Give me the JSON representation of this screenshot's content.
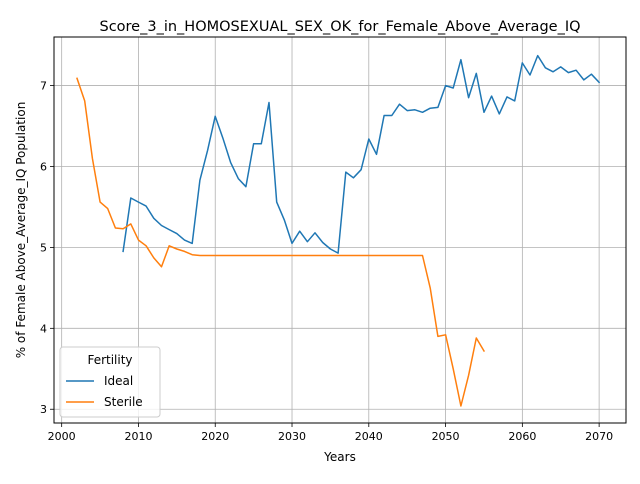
{
  "chart_data": {
    "type": "line",
    "title": "Score_3_in_HOMOSEXUAL_SEX_OK_for_Female_Above_Average_IQ",
    "xlabel": "Years",
    "ylabel": "% of Female Above_Average_IQ Population",
    "xlim": [
      1999,
      2073.5
    ],
    "ylim": [
      2.83,
      7.6
    ],
    "xticks": [
      2000,
      2010,
      2020,
      2030,
      2040,
      2050,
      2060,
      2070
    ],
    "yticks": [
      3,
      4,
      5,
      6,
      7
    ],
    "grid": true,
    "legend": {
      "title": "Fertility",
      "placement": "lower-left"
    },
    "series": [
      {
        "name": "Ideal",
        "color": "#1f77b4",
        "x": [
          2008,
          2009,
          2010,
          2011,
          2012,
          2013,
          2014,
          2015,
          2016,
          2017,
          2018,
          2019,
          2020,
          2021,
          2022,
          2023,
          2024,
          2025,
          2026,
          2027,
          2028,
          2029,
          2030,
          2031,
          2032,
          2033,
          2034,
          2035,
          2036,
          2037,
          2038,
          2039,
          2040,
          2041,
          2042,
          2043,
          2044,
          2045,
          2046,
          2047,
          2048,
          2049,
          2050,
          2051,
          2052,
          2053,
          2054,
          2055,
          2056,
          2057,
          2058,
          2059,
          2060,
          2061,
          2062,
          2063,
          2064,
          2065,
          2066,
          2067,
          2068,
          2069,
          2070
        ],
        "y": [
          4.95,
          5.61,
          5.56,
          5.51,
          5.36,
          5.27,
          5.22,
          5.17,
          5.09,
          5.05,
          5.83,
          6.2,
          6.62,
          6.35,
          6.05,
          5.85,
          5.75,
          6.28,
          6.28,
          6.79,
          5.56,
          5.34,
          5.05,
          5.2,
          5.07,
          5.18,
          5.06,
          4.98,
          4.93,
          5.93,
          5.86,
          5.96,
          6.34,
          6.15,
          6.63,
          6.63,
          6.77,
          6.69,
          6.7,
          6.67,
          6.72,
          6.73,
          7.0,
          6.97,
          7.32,
          6.85,
          7.15,
          6.67,
          6.87,
          6.65,
          6.86,
          6.81,
          7.28,
          7.13,
          7.37,
          7.22,
          7.17,
          7.23,
          7.16,
          7.19,
          7.07,
          7.14,
          7.04
        ]
      },
      {
        "name": "Sterile",
        "color": "#ff7f0e",
        "x": [
          2002,
          2003,
          2004,
          2005,
          2006,
          2007,
          2008,
          2009,
          2010,
          2011,
          2012,
          2013,
          2014,
          2015,
          2016,
          2017,
          2018,
          2019,
          2020,
          2021,
          2022,
          2023,
          2024,
          2025,
          2026,
          2027,
          2028,
          2029,
          2030,
          2031,
          2032,
          2033,
          2034,
          2035,
          2036,
          2037,
          2038,
          2039,
          2040,
          2041,
          2042,
          2043,
          2044,
          2045,
          2046,
          2047,
          2048,
          2049,
          2050,
          2051,
          2052,
          2053,
          2054,
          2055
        ],
        "y": [
          7.09,
          6.81,
          6.1,
          5.56,
          5.48,
          5.24,
          5.23,
          5.29,
          5.09,
          5.02,
          4.87,
          4.76,
          5.02,
          4.98,
          4.95,
          4.91,
          4.9,
          4.9,
          4.9,
          4.9,
          4.9,
          4.9,
          4.9,
          4.9,
          4.9,
          4.9,
          4.9,
          4.9,
          4.9,
          4.9,
          4.9,
          4.9,
          4.9,
          4.9,
          4.9,
          4.9,
          4.9,
          4.9,
          4.9,
          4.9,
          4.9,
          4.9,
          4.9,
          4.9,
          4.9,
          4.9,
          4.5,
          3.9,
          3.92,
          3.5,
          3.04,
          3.42,
          3.88,
          3.72
        ]
      }
    ]
  }
}
